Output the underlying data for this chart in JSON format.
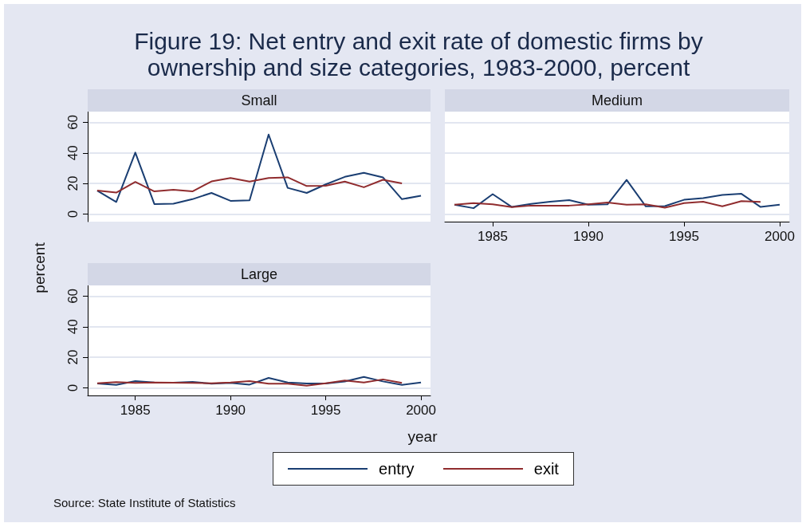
{
  "chart_data": [
    {
      "type": "line",
      "title": "Figure 19: Net entry and exit rate of domestic firms by ownership and size categories, 1983-2000, percent",
      "subtitle": "Small",
      "xlabel": "year",
      "ylabel": "percent",
      "annotations": [
        "Source: State Institute of Statistics"
      ],
      "legend": "bottom",
      "grid": "y",
      "tick_labels": "y",
      "x": [
        1983,
        1984,
        1985,
        1986,
        1987,
        1988,
        1989,
        1990,
        1991,
        1992,
        1993,
        1994,
        1995,
        1996,
        1997,
        1998,
        1999,
        2000
      ],
      "xlim": [
        1982.5,
        2000.5
      ],
      "xticks": [
        1985,
        1990,
        1995,
        2000
      ],
      "ylim": [
        -5,
        67
      ],
      "yticks": [
        0,
        20,
        40,
        60
      ],
      "series": [
        {
          "name": "entry",
          "color": "#1a3e72",
          "values": [
            15.3,
            7.9,
            40.2,
            6.5,
            6.7,
            9.7,
            13.8,
            8.6,
            9,
            52,
            17.1,
            13.8,
            19.4,
            24.3,
            27,
            24,
            9.7,
            12
          ]
        },
        {
          "name": "exit",
          "color": "#902c2e",
          "values": [
            15.3,
            14,
            21,
            14.8,
            15.9,
            14.8,
            21.3,
            23.6,
            21.2,
            23.6,
            24,
            18.3,
            18.5,
            21.2,
            17.5,
            22.4,
            20.1,
            null
          ]
        }
      ]
    },
    {
      "type": "line",
      "subtitle": "Medium",
      "grid": "y",
      "tick_labels": "x",
      "x": [
        1983,
        1984,
        1985,
        1986,
        1987,
        1988,
        1989,
        1990,
        1991,
        1992,
        1993,
        1994,
        1995,
        1996,
        1997,
        1998,
        1999,
        2000
      ],
      "xlim": [
        1982.5,
        2000.5
      ],
      "xticks": [
        1985,
        1990,
        1995,
        2000
      ],
      "ylim": [
        -5,
        67
      ],
      "yticks": [
        0,
        20,
        40,
        60
      ],
      "series": [
        {
          "color": "#1a3e72",
          "values": [
            6.1,
            3.8,
            13,
            4.6,
            6.6,
            8,
            9.1,
            6.1,
            6.3,
            22.3,
            5,
            5.2,
            9.3,
            10.4,
            12.5,
            13.2,
            4.6,
            6.1
          ]
        },
        {
          "color": "#902c2e",
          "values": [
            6.1,
            7.1,
            6.4,
            4.5,
            5.5,
            5.5,
            5.5,
            6.4,
            7.5,
            6.1,
            6.3,
            4.1,
            7.1,
            8,
            5,
            8.4,
            7.9,
            null
          ]
        }
      ]
    },
    {
      "type": "line",
      "subtitle": "Large",
      "grid": "y",
      "x": [
        1983,
        1984,
        1985,
        1986,
        1987,
        1988,
        1989,
        1990,
        1991,
        1992,
        1993,
        1994,
        1995,
        1996,
        1997,
        1998,
        1999,
        2000
      ],
      "xlim": [
        1982.5,
        2000.5
      ],
      "xticks": [
        1985,
        1990,
        1995,
        2000
      ],
      "ylim": [
        -5,
        67
      ],
      "yticks": [
        0,
        20,
        40,
        60
      ],
      "series": [
        {
          "color": "#1a3e72",
          "values": [
            2.8,
            1.9,
            4.4,
            3.5,
            3.4,
            3.9,
            2.7,
            3.2,
            2.1,
            6.5,
            3.5,
            2.8,
            2.8,
            4.1,
            7.1,
            4.2,
            1.9,
            3.5
          ]
        },
        {
          "color": "#902c2e",
          "values": [
            3,
            3.7,
            3.2,
            3.5,
            3.4,
            3.2,
            3,
            3.5,
            4.4,
            2.7,
            2.7,
            1.4,
            3,
            4.8,
            3.5,
            5.5,
            3.2,
            null
          ]
        }
      ]
    }
  ]
}
